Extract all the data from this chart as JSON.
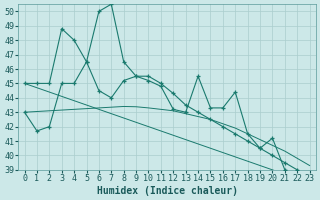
{
  "title": "",
  "xlabel": "Humidex (Indice chaleur)",
  "x": [
    0,
    1,
    2,
    3,
    4,
    5,
    6,
    7,
    8,
    9,
    10,
    11,
    12,
    13,
    14,
    15,
    16,
    17,
    18,
    19,
    20,
    21,
    22,
    23
  ],
  "y_main": [
    43,
    41.7,
    42,
    45,
    45,
    46.5,
    50,
    50.5,
    46.5,
    45.5,
    45.2,
    44.8,
    43.2,
    43,
    45.5,
    43.3,
    43.3,
    44.4,
    41.5,
    40.5,
    41.2,
    39,
    38.8,
    38.6
  ],
  "y_smooth": [
    45,
    45,
    45,
    48.8,
    48,
    46.5,
    44.5,
    44,
    45.2,
    45.5,
    45.5,
    45,
    44.3,
    43.5,
    43,
    42.5,
    42,
    41.5,
    41,
    40.5,
    40,
    39.5,
    39,
    38.7
  ],
  "y_trend1": [
    45,
    44.7,
    44.4,
    44.1,
    43.8,
    43.5,
    43.2,
    42.9,
    42.6,
    42.3,
    42,
    41.7,
    41.4,
    41.1,
    40.8,
    40.5,
    40.2,
    39.9,
    39.6,
    39.3,
    39,
    38.7,
    38.4,
    38.1
  ],
  "y_trend2": [
    43,
    43.05,
    43.1,
    43.15,
    43.2,
    43.25,
    43.3,
    43.35,
    43.4,
    43.38,
    43.3,
    43.2,
    43.1,
    42.9,
    42.7,
    42.5,
    42.2,
    41.9,
    41.5,
    41.1,
    40.7,
    40.3,
    39.8,
    39.3
  ],
  "ylim": [
    39,
    50.5
  ],
  "xlim": [
    -0.5,
    23.5
  ],
  "bg_color": "#cce8e8",
  "grid_color": "#aacece",
  "line_color": "#1a7a6e",
  "tick_fontsize": 6,
  "label_fontsize": 7
}
